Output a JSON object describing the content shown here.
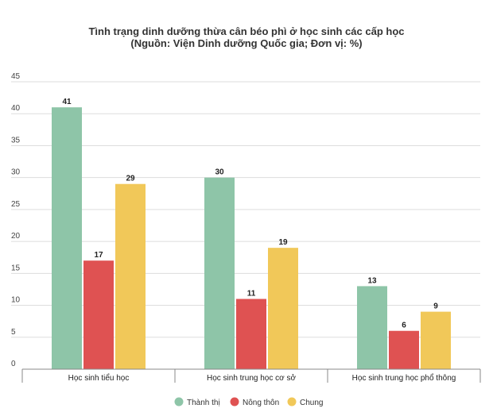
{
  "chart_data": {
    "type": "bar",
    "title": "Tình trạng dinh dưỡng thừa cân béo phì ở học sinh các cấp học",
    "subtitle": "(Nguồn: Viện Dinh dưỡng Quốc gia; Đơn vị: %)",
    "categories": [
      "Học sinh tiểu học",
      "Học sinh trung học cơ sở",
      "Học sinh trung học phổ thông"
    ],
    "series": [
      {
        "name": "Thành thị",
        "color": "#8ec5a8",
        "values": [
          41,
          30,
          13
        ]
      },
      {
        "name": "Nông thôn",
        "color": "#df5252",
        "values": [
          17,
          11,
          6
        ]
      },
      {
        "name": "Chung",
        "color": "#f1c859",
        "values": [
          29,
          19,
          9
        ]
      }
    ],
    "ylim": [
      0,
      45
    ],
    "yticks": [
      0,
      5,
      10,
      15,
      20,
      25,
      30,
      35,
      40,
      45
    ],
    "grid": true,
    "legend": "bottom-center",
    "xlabel": "",
    "ylabel": ""
  }
}
